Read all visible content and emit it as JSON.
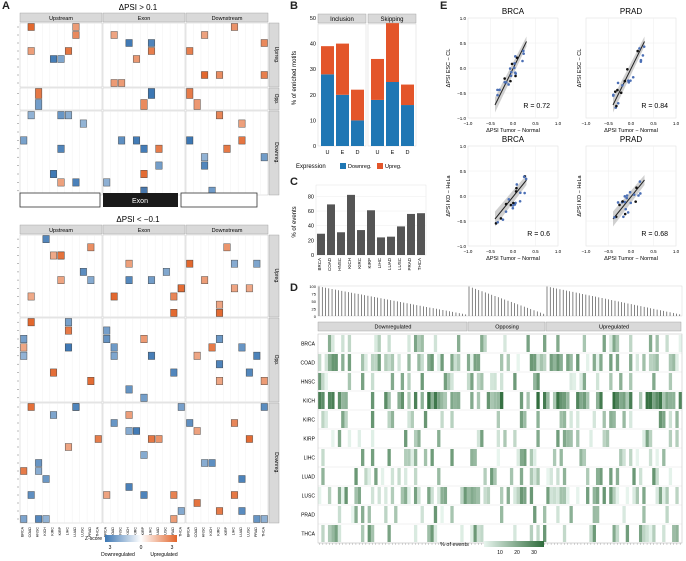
{
  "panels": {
    "A": "A",
    "B": "B",
    "C": "C",
    "D": "D",
    "E": "E"
  },
  "panel_a": {
    "top_title": "ΔPSI > 0.1",
    "bottom_title": "ΔPSI < −0.1",
    "columns": [
      "Upstream",
      "Exon",
      "Downstream"
    ],
    "rows": [
      "Uprreg.",
      "Opp.",
      "Downreg."
    ],
    "rows_bottom": [
      "Upreg.",
      "Opp.",
      "Downreg."
    ],
    "exon_label": "Exon",
    "tumor_ticks": [
      "BRCA",
      "COAD",
      "HNSC",
      "KICH",
      "KIRC",
      "KIRP",
      "LIHC",
      "LUAD",
      "LUSC",
      "PRAD",
      "THCA"
    ],
    "legend_title": "Z-score",
    "legend_ticks": [
      "3",
      "0",
      "3"
    ],
    "legend_down": "Downregulated",
    "legend_up": "Upregulated",
    "colors": {
      "down": "#3b76b3",
      "up": "#e2662c"
    }
  },
  "chart_data": [
    {
      "type": "bar",
      "panel": "B",
      "facets": [
        "Inclusion",
        "Skipping"
      ],
      "categories": [
        "U",
        "E",
        "D"
      ],
      "ylabel": "% of enriched motifs",
      "ylim": [
        0,
        50
      ],
      "yticks": [
        "0",
        "10",
        "20",
        "30",
        "40",
        "50"
      ],
      "series": [
        {
          "name": "Downreg.",
          "color": "#1f77b4",
          "values": [
            [
              28,
              20,
              10
            ],
            [
              18,
              25,
              16
            ]
          ]
        },
        {
          "name": "Upreg.",
          "color": "#e3552a",
          "values": [
            [
              11,
              20,
              12
            ],
            [
              16,
              23,
              8
            ]
          ]
        }
      ],
      "legend_title": "Expression"
    },
    {
      "type": "bar",
      "panel": "C",
      "categories": [
        "BRCA",
        "COAD",
        "HNSC",
        "KICH",
        "KIRC",
        "KIRP",
        "LIHC",
        "LUAD",
        "LUSC",
        "PRAD",
        "THCA"
      ],
      "pairs": [
        [
          29,
          69
        ],
        [
          31,
          82
        ],
        [
          34,
          61
        ],
        [
          24,
          25
        ],
        [
          39,
          56
        ],
        [
          57
        ]
      ],
      "values": [
        29,
        69,
        31,
        82,
        34,
        61,
        24,
        25,
        39,
        56,
        57
      ],
      "ylabel": "% of events",
      "ylim": [
        0,
        90
      ],
      "yticks": [
        "0",
        "20",
        "40",
        "60",
        "80"
      ],
      "color": "#555555"
    },
    {
      "type": "heatmap",
      "panel": "D",
      "groups": [
        "Downregulated",
        "Opposing",
        "Upregulated"
      ],
      "rows": [
        "BRCA",
        "COAD",
        "HNSC",
        "KICH",
        "KIRC",
        "KIRP",
        "LIHC",
        "LUAD",
        "LUSC",
        "PRAD",
        "THCA"
      ],
      "top_yticks": [
        "100",
        "75",
        "50",
        "25",
        "0"
      ],
      "legend_title": "% of events",
      "legend_ticks": [
        "10",
        "20",
        "30"
      ],
      "colors": [
        "#e8f5ee",
        "#2e6b3b"
      ]
    },
    {
      "type": "scatter",
      "panel": "E",
      "plots": [
        {
          "title": "BRCA",
          "xlabel": "ΔPSI Tumor − Normal",
          "ylabel": "ΔPSI ESC − CL",
          "r": "R = 0.72"
        },
        {
          "title": "PRAD",
          "xlabel": "ΔPSI Tumor − Normal",
          "ylabel": "ΔPSI ESC − CL",
          "r": "R = 0.84"
        },
        {
          "title": "BRCA",
          "xlabel": "ΔPSI Tumor − Normal",
          "ylabel": "ΔPSI KD − HeLa",
          "r": "R = 0.6"
        },
        {
          "title": "PRAD",
          "xlabel": "ΔPSI Tumor − Normal",
          "ylabel": "ΔPSI KD − HeLa",
          "r": "R = 0.68"
        }
      ],
      "xticks": [
        "−1.0",
        "−0.5",
        "0.0",
        "0.5",
        "1.0"
      ],
      "yticks": [
        "1.0",
        "0.5",
        "0.0",
        "−0.5",
        "−1.0"
      ],
      "xlim": [
        -1,
        1
      ],
      "ylim": [
        -1,
        1
      ]
    }
  ]
}
